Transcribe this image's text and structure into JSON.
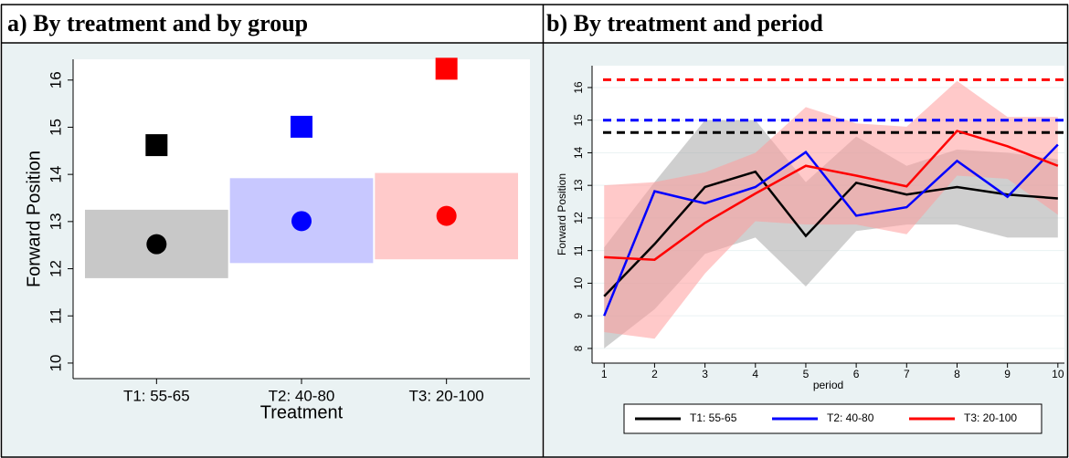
{
  "chart_data": [
    {
      "type": "dot-range",
      "title": "a) By treatment and by group",
      "xlabel": "Treatment",
      "ylabel": "Forward Position",
      "categories": [
        "T1: 55-65",
        "T2: 40-80",
        "T3: 20-100"
      ],
      "values": [
        12.52,
        13.01,
        13.12
      ],
      "marker_values": [
        14.62,
        15.01,
        16.24
      ],
      "range_low": [
        11.8,
        12.12,
        12.2
      ],
      "range_high": [
        13.25,
        13.92,
        14.03
      ],
      "colors": [
        "#000000",
        "#0000ff",
        "#ff0000"
      ],
      "band_colors": [
        "#c8c8c8",
        "#c8c8ff",
        "#ffcaca"
      ],
      "ylim": [
        9.67,
        16.44
      ],
      "yticks": [
        10,
        11,
        12,
        13,
        14,
        15,
        16
      ]
    },
    {
      "type": "line",
      "title": "b) By treatment and period",
      "xlabel": "period",
      "ylabel": "Forward Position",
      "x": [
        1,
        2,
        3,
        4,
        5,
        6,
        7,
        8,
        9,
        10
      ],
      "xlim": [
        0.76,
        10.13
      ],
      "xticks": [
        1,
        2,
        3,
        4,
        5,
        6,
        7,
        8,
        9,
        10
      ],
      "ylim": [
        7.55,
        16.67
      ],
      "yticks": [
        8,
        9,
        10,
        11,
        12,
        13,
        14,
        15,
        16
      ],
      "series": [
        {
          "name": "T1: 55-65",
          "color": "#000000",
          "reference": 14.62,
          "values": [
            9.6,
            11.2,
            12.95,
            13.42,
            11.45,
            13.08,
            12.72,
            12.95,
            12.72,
            12.6
          ],
          "band_low": [
            8.0,
            9.2,
            10.9,
            11.4,
            9.9,
            11.6,
            11.8,
            11.8,
            11.4,
            11.4
          ],
          "band_high": [
            11.1,
            13.1,
            15.0,
            15.0,
            13.1,
            14.5,
            13.6,
            14.1,
            14.0,
            13.8
          ],
          "band_color": "#a8a8a8"
        },
        {
          "name": "T2: 40-80",
          "color": "#0000ff",
          "reference": 15.0,
          "values": [
            9.0,
            12.82,
            12.45,
            12.95,
            14.02,
            12.07,
            12.33,
            13.75,
            12.65,
            14.25
          ]
        },
        {
          "name": "T3: 20-100",
          "color": "#ff0000",
          "reference": 16.24,
          "values": [
            10.8,
            10.72,
            11.85,
            12.75,
            13.6,
            13.3,
            12.97,
            14.67,
            14.2,
            13.6
          ],
          "band_low": [
            8.5,
            8.3,
            10.3,
            11.9,
            11.8,
            11.8,
            11.5,
            13.3,
            13.2,
            12.1
          ],
          "band_high": [
            13.0,
            13.1,
            13.4,
            14.0,
            15.4,
            14.9,
            14.8,
            16.2,
            15.1,
            15.1
          ],
          "band_color": "#ff9c9c"
        }
      ]
    }
  ]
}
